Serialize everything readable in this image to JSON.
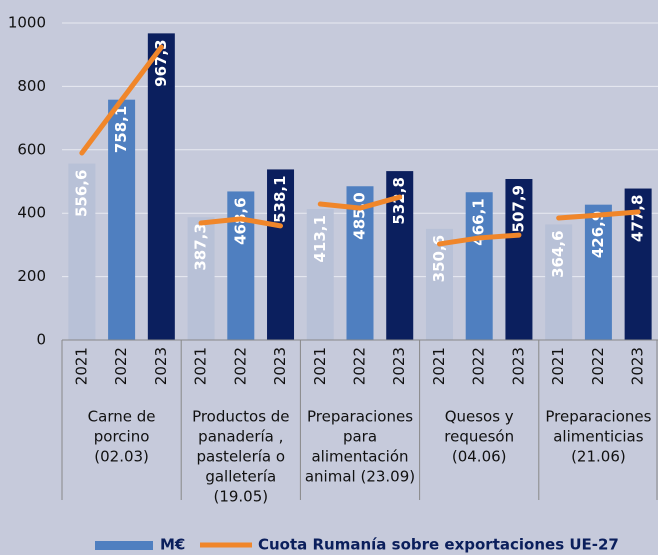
{
  "chart_data": {
    "type": "bar",
    "ylim": [
      0,
      1000
    ],
    "yticks": [
      0,
      200,
      400,
      600,
      800,
      1000
    ],
    "grid": true,
    "categories": [
      "2021",
      "2022",
      "2023",
      "2021",
      "2022",
      "2023",
      "2021",
      "2022",
      "2023",
      "2021",
      "2022",
      "2023",
      "2021",
      "2022",
      "2023"
    ],
    "groups": [
      {
        "label_lines": [
          "Carne de",
          "porcino",
          "(02.03)"
        ]
      },
      {
        "label_lines": [
          "Productos de",
          "panadería ,",
          "pastelería o",
          "galletería",
          "(19.05)"
        ]
      },
      {
        "label_lines": [
          "Preparaciones",
          "para",
          "alimentación",
          "animal  (23.09)"
        ]
      },
      {
        "label_lines": [
          "Quesos y",
          "requesón",
          "(04.06)"
        ]
      },
      {
        "label_lines": [
          "Preparaciones",
          "alimenticias",
          "(21.06)"
        ]
      }
    ],
    "series": [
      {
        "name": "M€",
        "color": "#4f7fc0",
        "year_colors": [
          "#b8c1d7",
          "#4f7fc0",
          "#0b1f5e"
        ],
        "values": [
          556.6,
          758.1,
          967.3,
          387.3,
          468.6,
          538.1,
          413.1,
          485.0,
          532.8,
          350.6,
          466.1,
          507.9,
          364.6,
          426.9,
          477.8
        ],
        "value_labels": [
          "556,6",
          "758,1",
          "967,3",
          "387,3",
          "468,6",
          "538,1",
          "413,1",
          "485,0",
          "532,8",
          "350,6",
          "466,1",
          "507,9",
          "364,6",
          "426,9",
          "477,8"
        ]
      },
      {
        "name": "Cuota Rumanía sobre exportaciones UE-27",
        "type": "line",
        "color": "#f0862a",
        "values": [
          590,
          757,
          924,
          369,
          382,
          360,
          429,
          416,
          451,
          303,
          322,
          331,
          385,
          394,
          404
        ]
      }
    ]
  }
}
